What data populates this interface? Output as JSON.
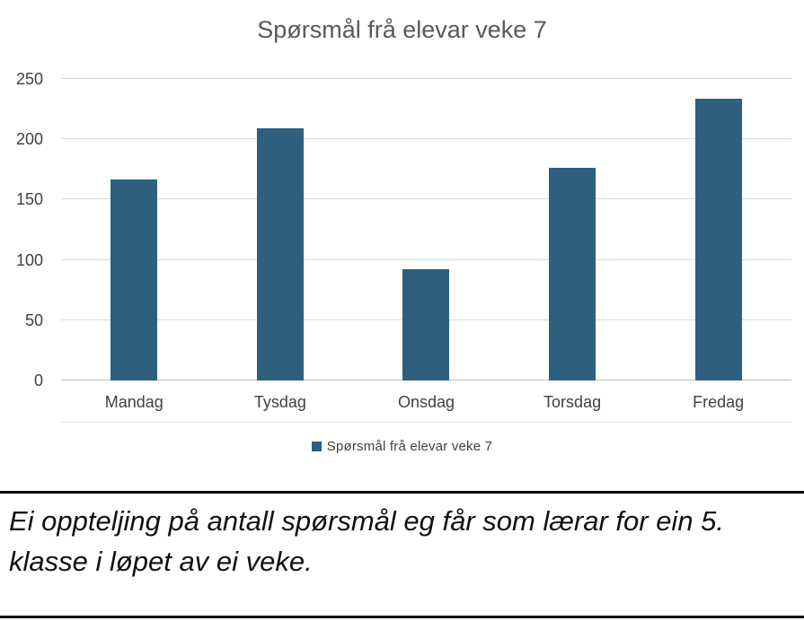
{
  "chart_data": {
    "type": "bar",
    "title": "Spørsmål frå elevar veke 7",
    "categories": [
      "Mandag",
      "Tysdag",
      "Onsdag",
      "Torsdag",
      "Fredag"
    ],
    "values": [
      167,
      209,
      92,
      176,
      234
    ],
    "series_name": "Spørsmål frå elevar veke 7",
    "xlabel": "",
    "ylabel": "",
    "ylim": [
      0,
      250
    ],
    "yticks": [
      0,
      50,
      100,
      150,
      200,
      250
    ],
    "grid": true,
    "legend_position": "bottom",
    "bar_color": "#2e5f7e"
  },
  "legend": {
    "label": "Spørsmål frå elevar veke 7",
    "swatch_color": "#2e5f7e"
  },
  "caption": {
    "text": "Ei oppteljing på antall spørsmål eg får som lærar for ein 5. klasse i løpet av ei veke."
  },
  "colors": {
    "bar": "#2e5f7e",
    "title_text": "#595959",
    "axis_text": "#404040",
    "gridline": "#d9d9d9",
    "divider": "#000000",
    "background": "#ffffff"
  }
}
